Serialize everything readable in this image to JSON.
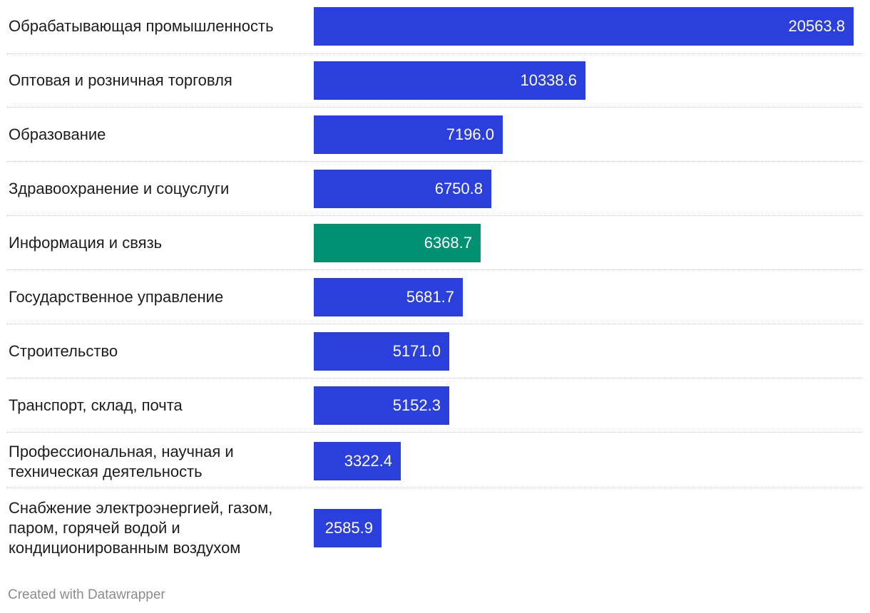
{
  "chart_data": {
    "type": "bar",
    "orientation": "horizontal",
    "categories": [
      "Обрабатывающая промышленность",
      "Оптовая и розничная торговля",
      "Образование",
      "Здравоохранение и соцуслуги",
      "Информация и связь",
      "Государственное управление",
      "Строительство",
      "Транспорт, склад, почта",
      "Профессиональная, научная и техническая деятельность",
      "Снабжение электроэнергией, газом, паром, горячей водой и кондиционированным воздухом"
    ],
    "values": [
      20563.8,
      10338.6,
      7196.0,
      6750.8,
      6368.7,
      5681.7,
      5171.0,
      5152.3,
      3322.4,
      2585.9
    ],
    "value_labels": [
      "20563.8",
      "10338.6",
      "7196.0",
      "6750.8",
      "6368.7",
      "5681.7",
      "5171.0",
      "5152.3",
      "3322.4",
      "2585.9"
    ],
    "highlight_index": 4,
    "colors": {
      "default": "#2b3fdd",
      "highlight": "#009173"
    },
    "xlim": [
      0,
      20563.8
    ],
    "grid": false
  },
  "footer": {
    "credit": "Created with Datawrapper"
  }
}
